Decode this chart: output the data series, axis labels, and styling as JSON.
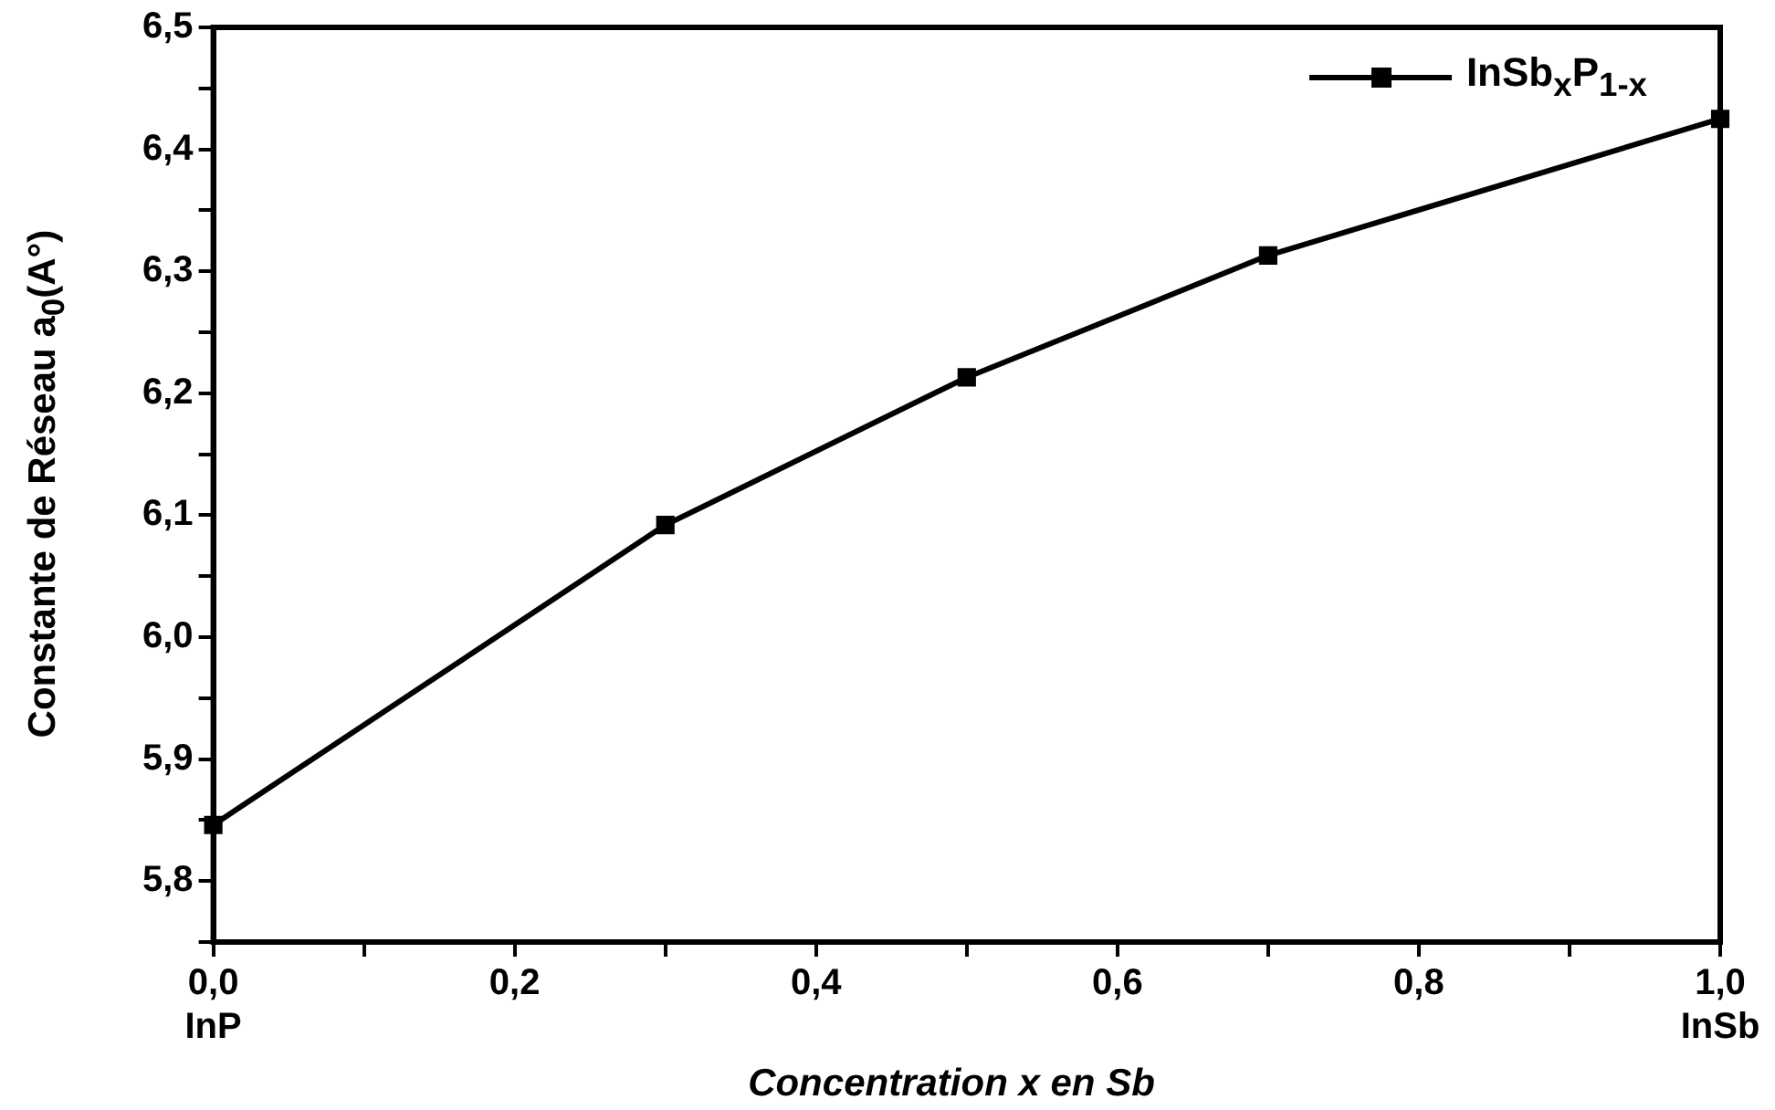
{
  "chart_data": {
    "type": "line",
    "xlabel": "Concentration x en Sb",
    "ylabel": "Constante de Réseau a$_{0}$(A°)",
    "x": [
      0,
      0.3,
      0.5,
      0.7,
      1.0
    ],
    "series": [
      {
        "name": "InSb$_{x}$P$_{1-x}$",
        "color": "#000000",
        "values": [
          5.846,
          6.092,
          6.213,
          6.313,
          6.425
        ]
      }
    ],
    "xlim": [
      0,
      1
    ],
    "xticks": [
      {
        "value": 0,
        "label": "0,0\nInP"
      },
      {
        "value": 0.1,
        "label": null
      },
      {
        "value": 0.2,
        "label": "0,2"
      },
      {
        "value": 0.3,
        "label": null
      },
      {
        "value": 0.4,
        "label": "0,4"
      },
      {
        "value": 0.5,
        "label": null
      },
      {
        "value": 0.6,
        "label": "0,6"
      },
      {
        "value": 0.7,
        "label": null
      },
      {
        "value": 0.8,
        "label": "0,8"
      },
      {
        "value": 0.9,
        "label": null
      },
      {
        "value": 1,
        "label": "1,0\nInSb"
      }
    ],
    "ylim": [
      5.75,
      6.5
    ],
    "yticks": [
      {
        "value": 5.75,
        "label": null
      },
      {
        "value": 5.8,
        "label": "5,8"
      },
      {
        "value": 5.85,
        "label": null
      },
      {
        "value": 5.9,
        "label": "5,9"
      },
      {
        "value": 5.95,
        "label": null
      },
      {
        "value": 6.0,
        "label": "6,0"
      },
      {
        "value": 6.05,
        "label": null
      },
      {
        "value": 6.1,
        "label": "6,1"
      },
      {
        "value": 6.15,
        "label": null
      },
      {
        "value": 6.2,
        "label": "6,2"
      },
      {
        "value": 6.25,
        "label": null
      },
      {
        "value": 6.3,
        "label": "6,3"
      },
      {
        "value": 6.35,
        "label": null
      },
      {
        "value": 6.4,
        "label": "6,4"
      },
      {
        "value": 6.45,
        "label": null
      },
      {
        "value": 6.5,
        "label": "6,5"
      }
    ],
    "grid": false,
    "legend": "top right",
    "marker": "square",
    "line_style": "solid"
  }
}
